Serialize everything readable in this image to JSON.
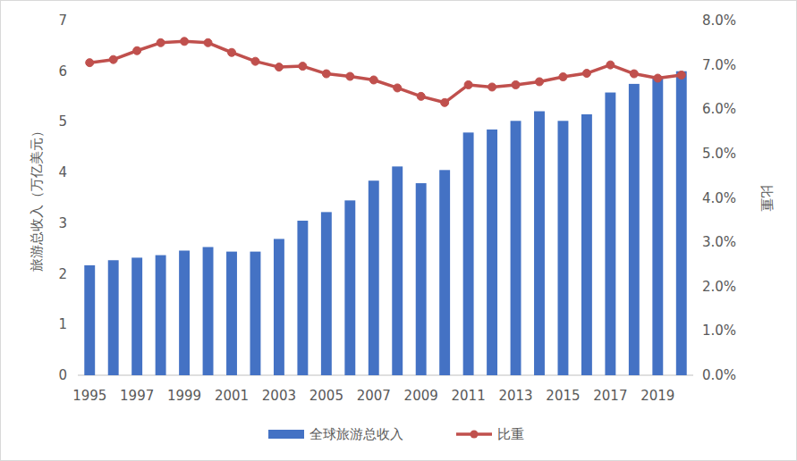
{
  "chart_data": {
    "type": "bar",
    "categories": [
      "1995",
      null,
      "1997",
      null,
      "1999",
      null,
      "2001",
      null,
      "2003",
      null,
      "2005",
      null,
      "2007",
      null,
      "2009",
      null,
      "2011",
      null,
      "2013",
      null,
      "2015",
      null,
      "2017",
      null,
      "2019",
      null
    ],
    "series": [
      {
        "name": "全球旅游总收入",
        "type": "bar",
        "color": "#4472c4",
        "values": [
          2.17,
          2.27,
          2.32,
          2.37,
          2.46,
          2.53,
          2.44,
          2.44,
          2.69,
          3.05,
          3.22,
          3.45,
          3.84,
          4.12,
          3.79,
          4.05,
          4.79,
          4.85,
          5.02,
          5.21,
          5.02,
          5.15,
          5.58,
          5.75,
          5.9,
          6.0
        ]
      },
      {
        "name": "比重",
        "type": "line",
        "axis": "y2",
        "color": "#c0504d",
        "marker": "circle",
        "values": [
          7.05,
          7.12,
          7.32,
          7.5,
          7.53,
          7.5,
          7.28,
          7.08,
          6.95,
          6.97,
          6.8,
          6.74,
          6.66,
          6.48,
          6.29,
          6.15,
          6.55,
          6.5,
          6.55,
          6.62,
          6.73,
          6.81,
          7.0,
          6.8,
          6.7,
          6.77
        ]
      }
    ],
    "y_label": "旅游总收入（万亿美元）",
    "y2_label": "比重",
    "ylim": [
      0,
      7
    ],
    "yticks": [
      0,
      1,
      2,
      3,
      4,
      5,
      6,
      7
    ],
    "y2lim": [
      0,
      8
    ],
    "y2ticks": [
      {
        "value": 0,
        "label": "0.0%"
      },
      {
        "value": 1,
        "label": "1.0%"
      },
      {
        "value": 2,
        "label": "2.0%"
      },
      {
        "value": 3,
        "label": "3.0%"
      },
      {
        "value": 4,
        "label": "4.0%"
      },
      {
        "value": 5,
        "label": "5.0%"
      },
      {
        "value": 6,
        "label": "6.0%"
      },
      {
        "value": 7,
        "label": "7.0%"
      },
      {
        "value": 8,
        "label": "8.0%"
      }
    ],
    "grid": false,
    "legend": "bottom"
  }
}
